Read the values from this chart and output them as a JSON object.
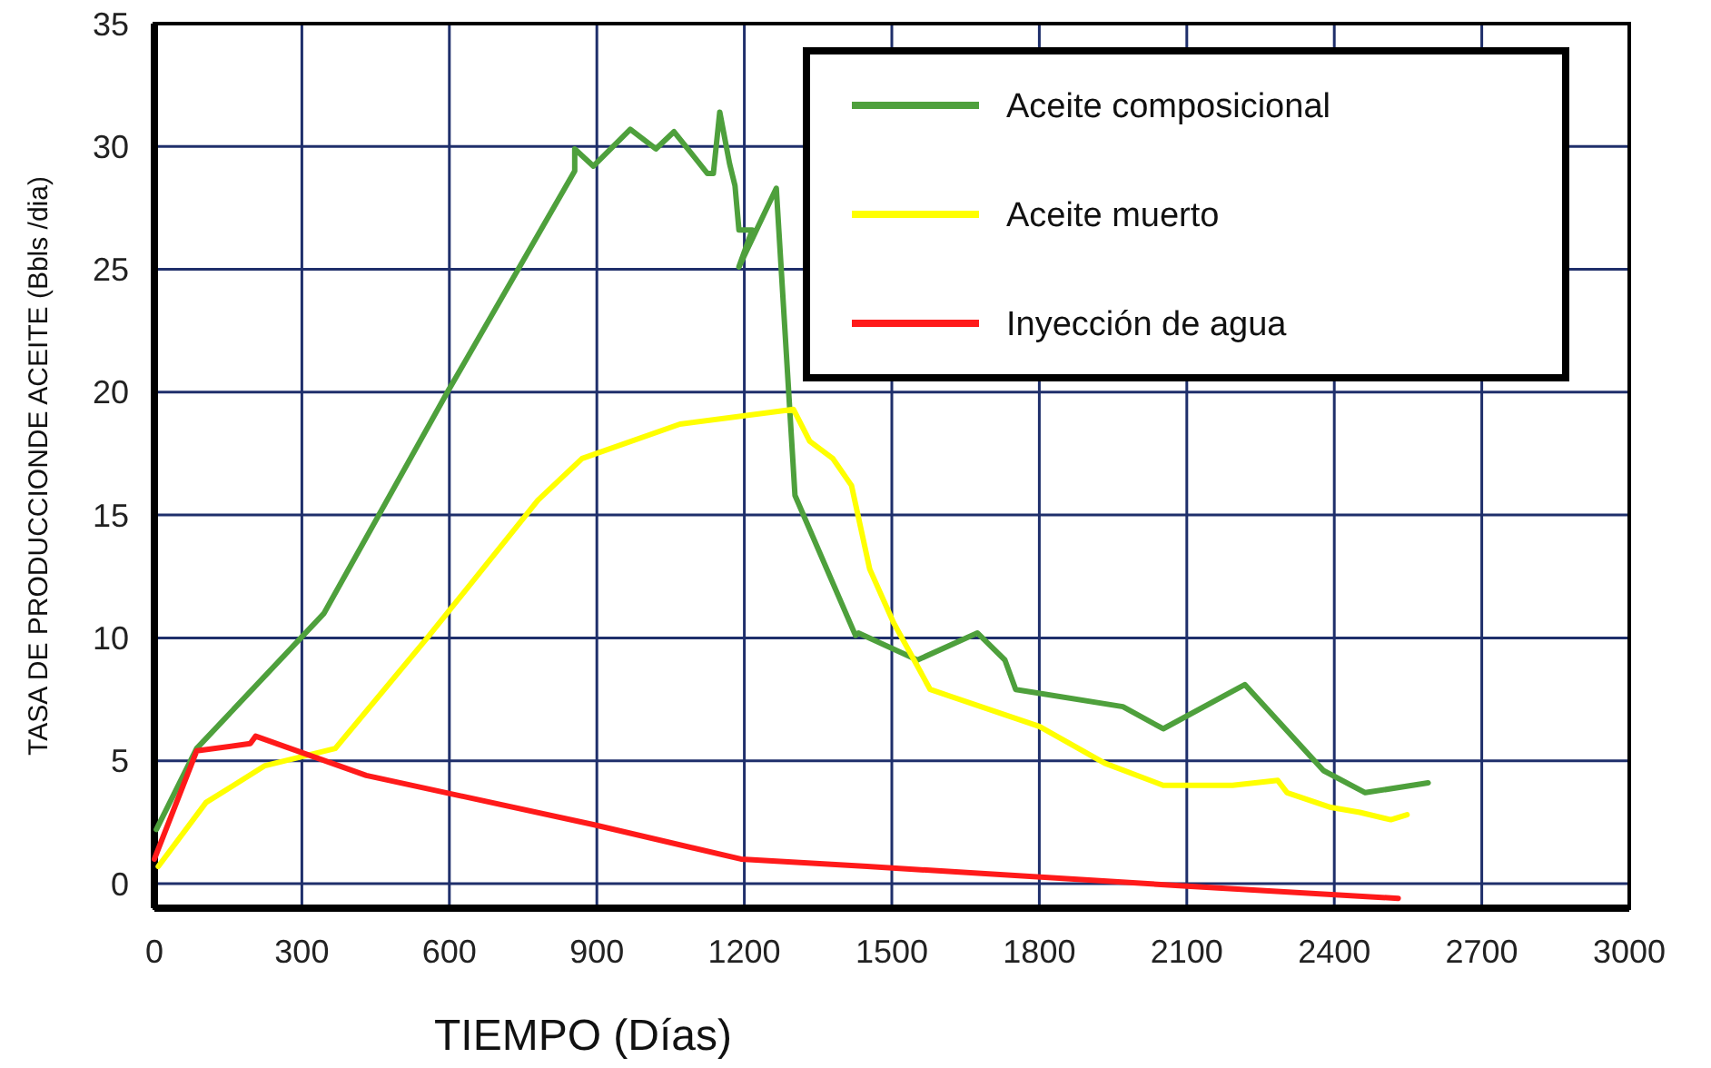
{
  "chart_data": {
    "type": "line",
    "xlabel": "TIEMPO  (Días)",
    "ylabel": "TASA DE PRODUCCIONDE ACEITE  (Bbls /dia)",
    "xlim": [
      0,
      3000
    ],
    "xticks": [
      0,
      300,
      600,
      900,
      1200,
      1500,
      1800,
      2100,
      2400,
      2700,
      3000
    ],
    "ylim": [
      -1,
      35
    ],
    "yticks": [
      0,
      5,
      10,
      15,
      20,
      25,
      30,
      35
    ],
    "grid": true,
    "legend": "top right",
    "line_style": "solid",
    "marker": "none",
    "series": [
      {
        "name": "Aceite composicional",
        "color": "#4ea03c",
        "x": [
          4,
          86,
          345,
          596,
          855,
          855,
          893,
          968,
          1020,
          1057,
          1125,
          1137,
          1150,
          1170,
          1181,
          1189,
          1216,
          1189,
          1265,
          1303,
          1426,
          1432,
          1552,
          1674,
          1730,
          1752,
          1970,
          2052,
          2218,
          2378,
          2463,
          2591
        ],
        "values": [
          2.2,
          5.5,
          11.0,
          20.0,
          29.0,
          29.9,
          29.2,
          30.7,
          29.9,
          30.6,
          28.9,
          28.9,
          31.4,
          29.3,
          28.4,
          26.6,
          26.6,
          25.1,
          28.3,
          15.8,
          10.1,
          10.2,
          9.1,
          10.2,
          9.1,
          7.9,
          7.2,
          6.3,
          8.1,
          4.6,
          3.7,
          4.1
        ]
      },
      {
        "name": "Aceite muerto",
        "color": "#ffff00",
        "x": [
          8,
          105,
          225,
          368,
          555,
          780,
          870,
          1069,
          1300,
          1333,
          1380,
          1418,
          1455,
          1504,
          1578,
          1800,
          1933,
          2052,
          2193,
          2285,
          2304,
          2393,
          2452,
          2515,
          2548
        ],
        "values": [
          0.7,
          3.3,
          4.8,
          5.5,
          10,
          15.6,
          17.3,
          18.7,
          19.3,
          18.0,
          17.3,
          16.2,
          12.8,
          10.6,
          7.9,
          6.4,
          4.9,
          4.0,
          4.0,
          4.2,
          3.7,
          3.1,
          2.9,
          2.6,
          2.8
        ]
      },
      {
        "name": "Inyección de agua",
        "color": "#ff1a1a",
        "x": [
          0,
          86,
          195,
          206,
          431,
          893,
          1193,
          1450,
          2100,
          2530
        ],
        "values": [
          1.0,
          5.4,
          5.7,
          6.0,
          4.4,
          2.4,
          1.0,
          0.7,
          -0.1,
          -0.6
        ]
      }
    ]
  }
}
